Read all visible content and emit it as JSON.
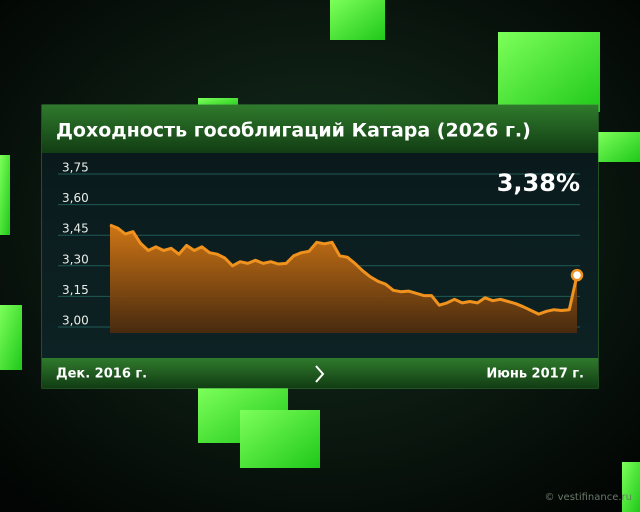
{
  "chart_data": {
    "type": "area",
    "title": "Доходность гособлигаций Катара (2026 г.)",
    "annotation": "3,38%",
    "x_start_label": "Дек. 2016 г.",
    "x_end_label": "Июнь 2017 г.",
    "watermark": "© vestifinance.ru",
    "color": "#f0921e",
    "grid": true,
    "ylim": [
      3.0,
      3.8
    ],
    "yticks": [
      {
        "value": 3.0,
        "label": "3,00"
      },
      {
        "value": 3.15,
        "label": "3,15"
      },
      {
        "value": 3.3,
        "label": "3,30"
      },
      {
        "value": 3.45,
        "label": "3,45"
      },
      {
        "value": 3.6,
        "label": "3,60"
      },
      {
        "value": 3.75,
        "label": "3,75"
      }
    ],
    "values": [
      3.5,
      3.485,
      3.456,
      3.467,
      3.41,
      3.375,
      3.393,
      3.375,
      3.386,
      3.357,
      3.4,
      3.375,
      3.393,
      3.364,
      3.357,
      3.338,
      3.3,
      3.32,
      3.312,
      3.327,
      3.312,
      3.32,
      3.309,
      3.312,
      3.349,
      3.364,
      3.371,
      3.415,
      3.408,
      3.415,
      3.349,
      3.342,
      3.312,
      3.276,
      3.246,
      3.224,
      3.21,
      3.18,
      3.173,
      3.176,
      3.165,
      3.154,
      3.154,
      3.107,
      3.118,
      3.136,
      3.118,
      3.125,
      3.118,
      3.143,
      3.129,
      3.136,
      3.125,
      3.114,
      3.099,
      3.081,
      3.063,
      3.077,
      3.085,
      3.081,
      3.085,
      3.254
    ]
  }
}
